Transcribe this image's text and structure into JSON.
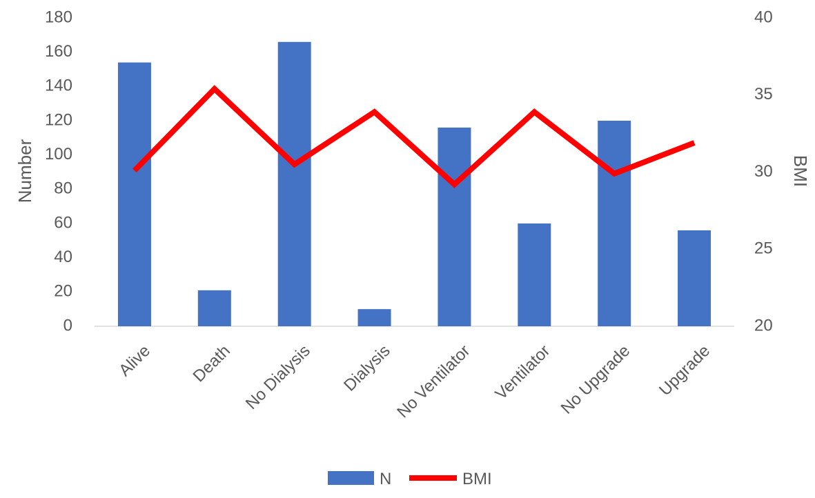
{
  "chart_data": {
    "type": "bar",
    "categories": [
      "Alive",
      "Death",
      "No Dialysis",
      "Dialysis",
      "No Ventilator",
      "Ventilator",
      "No Upgrade",
      "Upgrade"
    ],
    "series": [
      {
        "name": "N",
        "type": "bar",
        "axis": "left",
        "color": "#4472C4",
        "values": [
          154,
          21,
          166,
          10,
          116,
          60,
          120,
          56
        ]
      },
      {
        "name": "BMI",
        "type": "line",
        "axis": "right",
        "color": "#FF0000",
        "values": [
          30.1,
          35.4,
          30.5,
          33.9,
          29.2,
          33.9,
          29.9,
          31.9
        ]
      }
    ],
    "ylabel": "Number",
    "y2label": "BMI",
    "ylim": [
      0,
      180
    ],
    "yticks": [
      "0",
      "20",
      "40",
      "60",
      "80",
      "100",
      "120",
      "140",
      "160",
      "180"
    ],
    "y2lim": [
      20,
      40
    ],
    "y2ticks": [
      "20",
      "25",
      "30",
      "35",
      "40"
    ],
    "grid": false,
    "legend_position": "bottom"
  }
}
